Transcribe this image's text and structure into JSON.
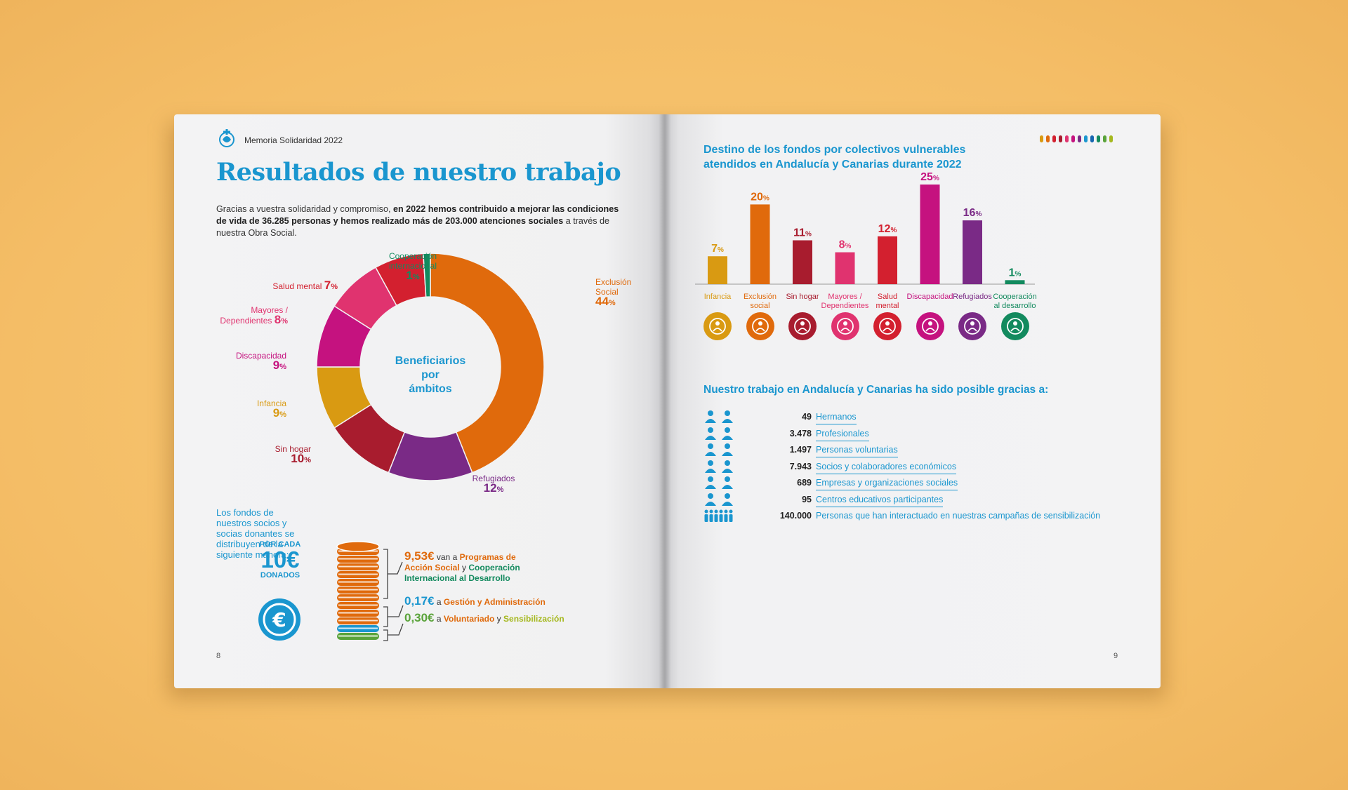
{
  "left_page": {
    "header": "Memoria Solidaridad 2022",
    "title": "Resultados de nuestro trabajo",
    "intro_pre": "Gracias a vuestra solidaridad y compromiso, ",
    "intro_bold": "en 2022 hemos contribuido a mejorar las condiciones de vida de 36.285 personas y hemos realizado más de 203.000 atenciones sociales",
    "intro_post": " a través de nuestra Obra Social.",
    "donut_center": [
      "Beneficiarios",
      "por",
      "ámbitos"
    ],
    "donut": [
      {
        "name": "Exclusión Social",
        "line1": "Exclusión",
        "line2": "Social",
        "value": 44,
        "color": "#e06a0c"
      },
      {
        "name": "Refugiados",
        "line1": "Refugiados",
        "line2": "",
        "value": 12,
        "color": "#7a2a86"
      },
      {
        "name": "Sin hogar",
        "line1": "Sin hogar",
        "line2": "",
        "value": 10,
        "color": "#a81c2e"
      },
      {
        "name": "Infancia",
        "line1": "Infancia",
        "line2": "",
        "value": 9,
        "color": "#d99a12"
      },
      {
        "name": "Discapacidad",
        "line1": "Discapacidad",
        "line2": "",
        "value": 9,
        "color": "#c5127f"
      },
      {
        "name": "Mayores / Dependientes",
        "line1": "Mayores /",
        "line2": "Dependientes",
        "value": 8,
        "color": "#e0336f"
      },
      {
        "name": "Salud mental",
        "line1": "Salud mental",
        "line2": "",
        "value": 7,
        "color": "#d3202f"
      },
      {
        "name": "Cooperación internacional",
        "line1": "Cooperación",
        "line2": "internacional",
        "value": 1,
        "color": "#138a5e"
      }
    ],
    "pct_sign": "%",
    "funds_text": "Los fondos de nuestros socios y socias donantes se distribuyen de la siguiente manera:",
    "por_cada": "POR CADA",
    "amount": "10€",
    "donados": "DONADOS",
    "euro_symbol": "€",
    "split": [
      {
        "amount": "9,53€",
        "pre": "van a ",
        "b1": "Programas de Acción Social",
        "mid": " y ",
        "b2": "Cooperación Internacional al Desarrollo",
        "c1": "#e06a0c",
        "c2": "#138a5e"
      },
      {
        "amount": "0,17€",
        "pre": "a ",
        "b1": "Gestión y Administración",
        "mid": "",
        "b2": "",
        "c1": "#e06a0c",
        "c2": "#e06a0c"
      },
      {
        "amount": "0,30€",
        "pre": "a ",
        "b1": "Voluntariado",
        "mid": " y ",
        "b2": "Sensibilización",
        "c1": "#e06a0c",
        "c2": "#a5b81e"
      }
    ],
    "page_number": "8"
  },
  "right_page": {
    "title": "Destino de los fondos por colectivos vulnerables atendidos en Andalucía y Canarias durante 2022",
    "chart_data": {
      "type": "bar",
      "categories": [
        "Infancia",
        "Exclusión social",
        "Sin hogar",
        "Mayores / Dependientes",
        "Salud mental",
        "Discapacidad",
        "Refugiados",
        "Cooperación al desarrollo"
      ],
      "category_lines": [
        [
          "Infancia"
        ],
        [
          "Exclusión",
          "social"
        ],
        [
          "Sin hogar"
        ],
        [
          "Mayores /",
          "Dependientes"
        ],
        [
          "Salud",
          "mental"
        ],
        [
          "Discapacidad"
        ],
        [
          "Refugiados"
        ],
        [
          "Cooperación",
          "al desarrollo"
        ]
      ],
      "values": [
        7,
        20,
        11,
        8,
        12,
        25,
        16,
        1
      ],
      "colors": [
        "#d99a12",
        "#e06a0c",
        "#a81c2e",
        "#e0336f",
        "#d3202f",
        "#c5127f",
        "#7a2a86",
        "#138a5e"
      ],
      "icons": [
        "children-icon",
        "heart-plus-icon",
        "house-icon",
        "elderly-walking-icon",
        "head-brain-icon",
        "wheelchair-icon",
        "refugee-family-icon",
        "globe-cooperation-icon"
      ],
      "ylim": [
        0,
        25
      ],
      "unit": "%"
    },
    "gracias_title": "Nuestro trabajo en Andalucía y Canarias ha sido posible gracias a:",
    "stats": [
      {
        "value": "49",
        "label": "Hermanos",
        "icon": "brothers-icon"
      },
      {
        "value": "3.478",
        "label": "Profesionales",
        "icon": "professionals-icon"
      },
      {
        "value": "1.497",
        "label": "Personas voluntarias",
        "icon": "volunteers-icon"
      },
      {
        "value": "7.943",
        "label": "Socios y colaboradores económicos",
        "icon": "handshake-heart-icon"
      },
      {
        "value": "689",
        "label": "Empresas y organizaciones sociales",
        "icon": "factory-globe-icon"
      },
      {
        "value": "95",
        "label": "Centros educativos participantes",
        "icon": "tablet-graduation-icon"
      },
      {
        "value": "140.000",
        "label": "Personas que han interactuado en nuestras campañas de sensibilización",
        "icon": "crowd-icon"
      }
    ],
    "page_number": "9",
    "strip_colors": [
      "#d99a12",
      "#e06a0c",
      "#d3202f",
      "#a81c2e",
      "#e0336f",
      "#c5127f",
      "#7a2a86",
      "#1a96cf",
      "#1565b0",
      "#138a5e",
      "#5aa33a",
      "#a5b81e"
    ]
  }
}
